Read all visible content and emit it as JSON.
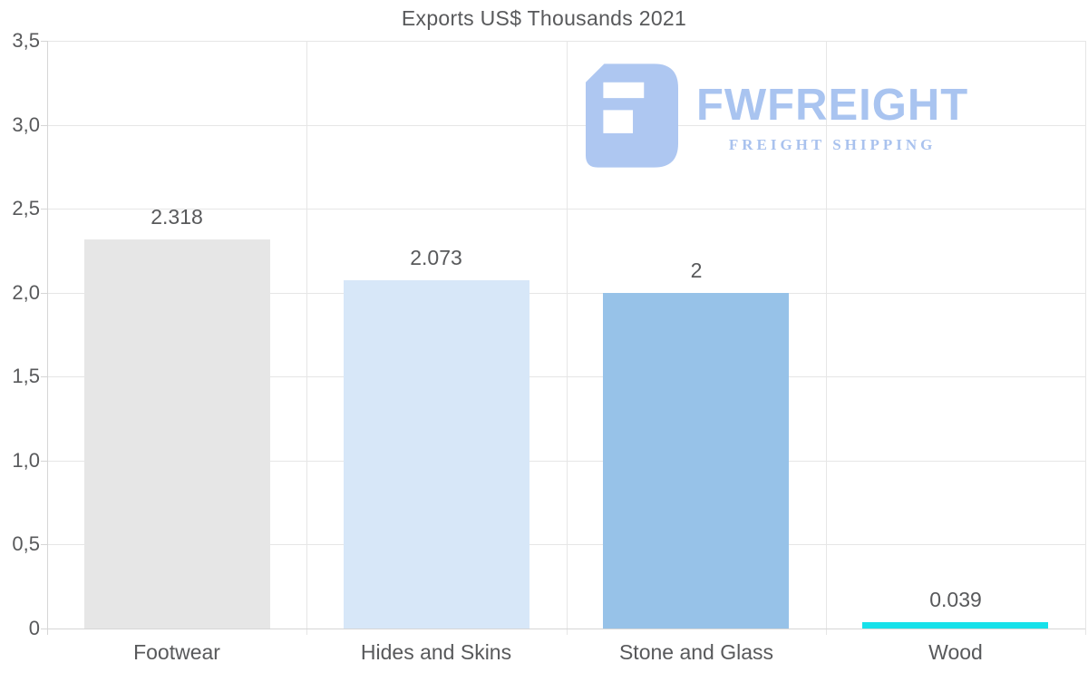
{
  "chart": {
    "title": "Exports US$ Thousands 2021"
  },
  "chart_data": {
    "type": "bar",
    "title": "Exports US$ Thousands 2021",
    "categories": [
      "Footwear",
      "Hides and Skins",
      "Stone and Glass",
      "Wood"
    ],
    "values": [
      2.318,
      2.073,
      2,
      0.039
    ],
    "value_labels": [
      "2.318",
      "2.073",
      "2",
      "0.039"
    ],
    "bar_colors": [
      "#e6e6e6",
      "#d7e7f8",
      "#97c2e8",
      "#17e1ea"
    ],
    "xlabel": "",
    "ylabel": "",
    "ylim": [
      0,
      3.5
    ],
    "ytick_values": [
      0,
      0.5,
      1,
      1.5,
      2,
      2.5,
      3,
      3.5
    ],
    "ytick_labels": [
      "0",
      "0,5",
      "1,0",
      "1,5",
      "2,0",
      "2,5",
      "3,0",
      "3,5"
    ],
    "grid": "horizontal gridlines at each y tick, vertical category separator lines",
    "legend": "none",
    "text_color": "#58595b",
    "grid_color": "#e6e6e6",
    "axis_color": "#d6d6d6"
  },
  "watermark": {
    "brand": "FWFREIGHT",
    "tagline": "FREIGHT SHIPPING",
    "brand_color": "#a9c4f0",
    "tagline_color": "#a9c2ee",
    "icon_color": "#aec7f1",
    "icon": "fwfreight-logo-mark"
  }
}
